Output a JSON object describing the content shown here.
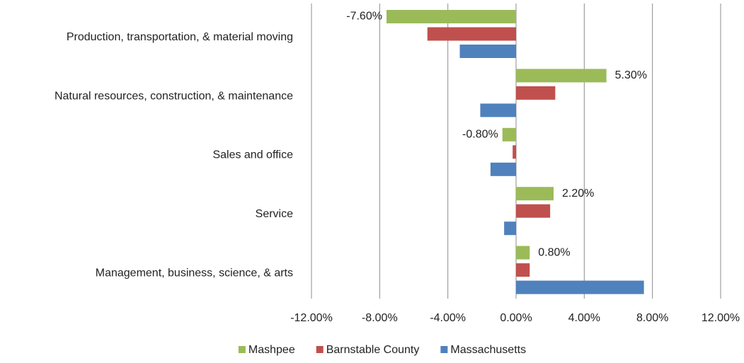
{
  "chart_data": {
    "type": "bar",
    "orientation": "horizontal",
    "categories": [
      "Production, transportation, & material moving",
      "Natural resources, construction, & maintenance",
      "Sales and office",
      "Service",
      "Management, business, science, & arts"
    ],
    "series": [
      {
        "name": "Mashpee",
        "color": "#9bbb59",
        "values": [
          -7.6,
          5.3,
          -0.8,
          2.2,
          0.8
        ],
        "value_labels": [
          "-7.60%",
          "5.30%",
          "-0.80%",
          "2.20%",
          "0.80%"
        ]
      },
      {
        "name": "Barnstable County",
        "color": "#c0504d",
        "values": [
          -5.2,
          2.3,
          -0.2,
          2.0,
          0.8
        ]
      },
      {
        "name": "Massachusetts",
        "color": "#4f81bd",
        "values": [
          -3.3,
          -2.1,
          -1.5,
          -0.7,
          7.5
        ]
      }
    ],
    "xlim": [
      -12,
      12
    ],
    "xticks": [
      {
        "value": -12,
        "label": "-12.00%"
      },
      {
        "value": -8,
        "label": "-8.00%"
      },
      {
        "value": -4,
        "label": "-4.00%"
      },
      {
        "value": 0,
        "label": "0.00%"
      },
      {
        "value": 4,
        "label": "4.00%"
      },
      {
        "value": 8,
        "label": "8.00%"
      },
      {
        "value": 12,
        "label": "12.00%"
      }
    ],
    "grid": true,
    "legend": "bottom"
  }
}
